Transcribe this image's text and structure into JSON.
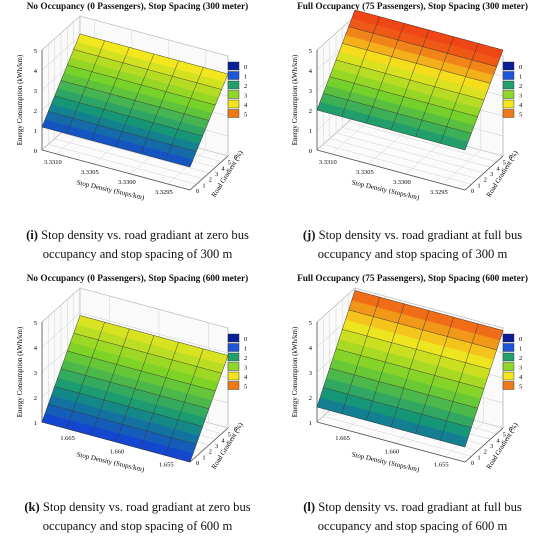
{
  "panels": [
    {
      "id": "i",
      "title": "No Occupancy (0 Passengers), Stop Spacing (300 meter)",
      "caption_letter": "(i)",
      "caption_line1": " Stop density vs. road gradiant at zero bus",
      "caption_line2": "occupancy and stop spacing of 300 m"
    },
    {
      "id": "j",
      "title": "Full Occupancy (75 Passengers), Stop Spacing (300 meter)",
      "caption_letter": "(j)",
      "caption_line1": " Stop density vs. road gradiant at full bus",
      "caption_line2": "occupancy and stop spacing of 300 m"
    },
    {
      "id": "k",
      "title": "No Occupancy (0 Passengers), Stop Spacing (600 meter)",
      "caption_letter": "(k)",
      "caption_line1": " Stop density vs. road gradiant at zero bus",
      "caption_line2": "occupancy and stop spacing of 600 m"
    },
    {
      "id": "l",
      "title": "Full Occupancy (75 Passengers), Stop Spacing (600 meter)",
      "caption_letter": "(l)",
      "caption_line1": " Stop density vs. road gradiant at full bus",
      "caption_line2": "occupancy and stop spacing of 600 m"
    }
  ],
  "chart_data": [
    {
      "type": "surface",
      "title": "No Occupancy (0 Passengers), Stop Spacing (300 meter)",
      "xlabel": "Stop Density (Stops/km)",
      "ylabel": "Road Gradient (%)",
      "zlabel": "Energy Consumption (kWh/km)",
      "x_ticks": [
        "3.3310",
        "3.3305",
        "3.3300",
        "3.3295"
      ],
      "x_range": [
        3.3292,
        3.3312
      ],
      "y_ticks": [
        "0",
        "1",
        "2",
        "3",
        "4",
        "5",
        "6"
      ],
      "y_range": [
        0,
        6
      ],
      "z_ticks": [
        "0",
        "1",
        "2",
        "3",
        "4",
        "5"
      ],
      "z_range": [
        0,
        5
      ],
      "surface": {
        "z_at_gradient_0": 1.15,
        "z_at_gradient_6": 4.1
      },
      "colorbar": {
        "levels": [
          "0",
          "1",
          "2",
          "3",
          "4",
          "5"
        ],
        "colors": [
          "#0a1e96",
          "#1f56d8",
          "#25a06a",
          "#8fd62a",
          "#f2e421",
          "#ee7a17"
        ]
      }
    },
    {
      "type": "surface",
      "title": "Full Occupancy (75 Passengers), Stop Spacing (300 meter)",
      "xlabel": "Stop Density (Stops/km)",
      "ylabel": "Road Gradient (%)",
      "zlabel": "Energy Consumption (kWh/km)",
      "x_ticks": [
        "3.3310",
        "3.3305",
        "3.3300",
        "3.3295"
      ],
      "x_range": [
        3.3292,
        3.3312
      ],
      "y_ticks": [
        "0",
        "1",
        "2",
        "3",
        "4",
        "5",
        "6"
      ],
      "y_range": [
        0,
        6
      ],
      "z_ticks": [
        "0",
        "1",
        "2",
        "3",
        "4",
        "5"
      ],
      "z_range": [
        0,
        5
      ],
      "surface": {
        "z_at_gradient_0": 2.0,
        "z_at_gradient_6": 5.3
      },
      "colorbar": {
        "levels": [
          "0",
          "1",
          "2",
          "3",
          "4",
          "5"
        ],
        "colors": [
          "#0a1e96",
          "#1f56d8",
          "#25a06a",
          "#8fd62a",
          "#f2e421",
          "#ee7a17"
        ]
      }
    },
    {
      "type": "surface",
      "title": "No Occupancy (0 Passengers), Stop Spacing (600 meter)",
      "xlabel": "Stop Density (Stops/km)",
      "ylabel": "Road Gradient (%)",
      "zlabel": "Energy Consumption (kWh/km)",
      "x_ticks": [
        "1.665",
        "1.660",
        "1.655"
      ],
      "x_range": [
        1.653,
        1.668
      ],
      "y_ticks": [
        "0",
        "1",
        "2",
        "3",
        "4",
        "5",
        "6"
      ],
      "y_range": [
        0,
        6
      ],
      "z_ticks": [
        "1",
        "2",
        "3",
        "4",
        "5"
      ],
      "z_range": [
        1,
        5
      ],
      "surface": {
        "z_at_gradient_0": 1.0,
        "z_at_gradient_6": 3.9
      },
      "colorbar": {
        "levels": [
          "0",
          "1",
          "2",
          "3",
          "4",
          "5"
        ],
        "colors": [
          "#0a1e96",
          "#1f56d8",
          "#25a06a",
          "#8fd62a",
          "#f2e421",
          "#ee7a17"
        ]
      }
    },
    {
      "type": "surface",
      "title": "Full Occupancy (75 Passengers), Stop Spacing (600 meter)",
      "xlabel": "Stop Density (Stops/km)",
      "ylabel": "Road Gradient (%)",
      "zlabel": "Energy Consumption (kWh/km)",
      "x_ticks": [
        "1.665",
        "1.660",
        "1.655"
      ],
      "x_range": [
        1.653,
        1.668
      ],
      "y_ticks": [
        "0",
        "1",
        "2",
        "3",
        "4",
        "5",
        "6"
      ],
      "y_range": [
        0,
        6
      ],
      "z_ticks": [
        "1",
        "2",
        "3",
        "4",
        "5"
      ],
      "z_range": [
        1,
        5
      ],
      "surface": {
        "z_at_gradient_0": 1.6,
        "z_at_gradient_6": 4.9
      },
      "colorbar": {
        "levels": [
          "0",
          "1",
          "2",
          "3",
          "4",
          "5"
        ],
        "colors": [
          "#0a1e96",
          "#1f56d8",
          "#25a06a",
          "#8fd62a",
          "#f2e421",
          "#ee7a17"
        ]
      }
    }
  ]
}
